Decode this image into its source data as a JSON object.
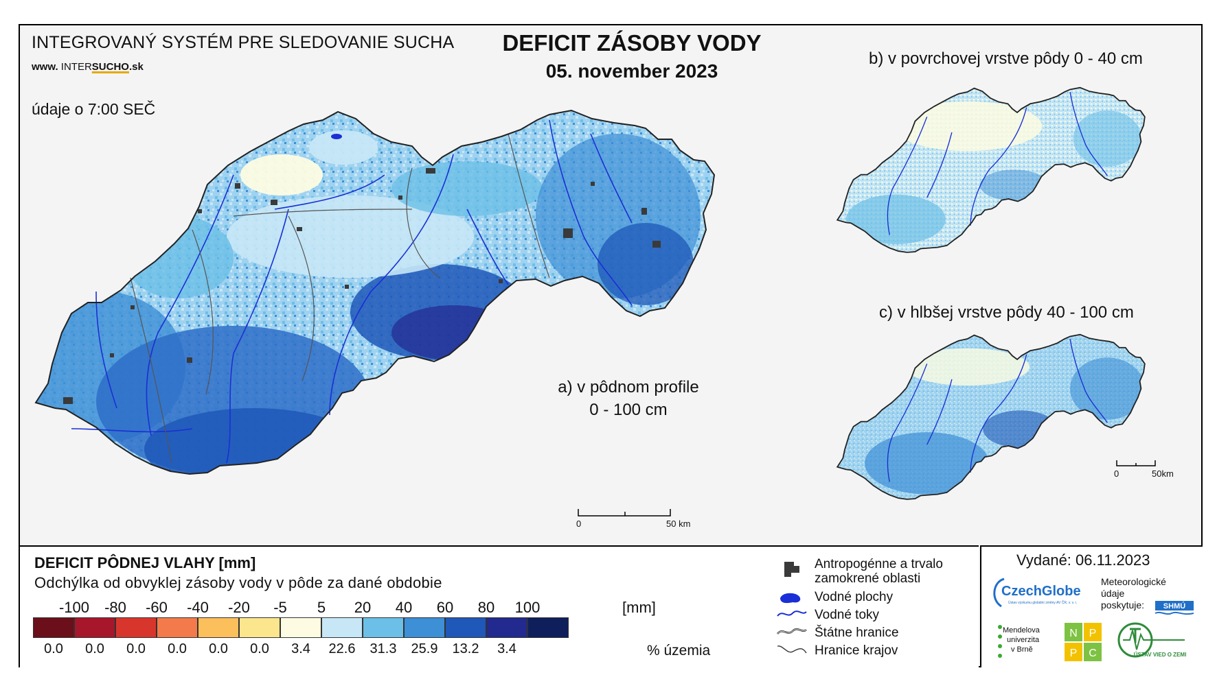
{
  "header": {
    "system_title": "INTEGROVANÝ SYSTÉM PRE SLEDOVANIE SUCHA",
    "url_prefix": "www. ",
    "url_a": "INTER",
    "url_b": "SUCHO",
    "url_c": ".sk",
    "time_note": "údaje o 7:00 SEČ"
  },
  "map_title": "DEFICIT ZÁSOBY VODY",
  "map_date": "05. november 2023",
  "panels": {
    "a_line1": "a) v pôdnom profile",
    "a_line2": "0 - 100 cm",
    "b": "b) v povrchovej vrstve pôdy 0 - 40 cm",
    "c": "c) v hlbšej vrstve pôdy 40 - 100 cm"
  },
  "scalebars": {
    "main_start": "0",
    "main_end": "50 km",
    "small_start": "0",
    "small_end": "50km"
  },
  "legend": {
    "title": "DEFICIT PÔDNEJ VLAHY [mm]",
    "subtitle": "Odchýlka od obvyklej zásoby vody v pôde za dané obdobie",
    "ticks": [
      "-100",
      "-80",
      "-60",
      "-40",
      "-20",
      "-5",
      "5",
      "20",
      "40",
      "60",
      "80",
      "100"
    ],
    "unit": "[mm]",
    "classes": [
      {
        "color": "#6b0f1a",
        "pct": "0.0"
      },
      {
        "color": "#a7172b",
        "pct": "0.0"
      },
      {
        "color": "#d8362d",
        "pct": "0.0"
      },
      {
        "color": "#f37a4a",
        "pct": "0.0"
      },
      {
        "color": "#fbbf5c",
        "pct": "0.0"
      },
      {
        "color": "#fbe68e",
        "pct": "0.0"
      },
      {
        "color": "#fdfce2",
        "pct": "3.4"
      },
      {
        "color": "#c7e7f6",
        "pct": "22.6"
      },
      {
        "color": "#6cbfe7",
        "pct": "31.3"
      },
      {
        "color": "#3d8fd6",
        "pct": "25.9"
      },
      {
        "color": "#1f58b8",
        "pct": "13.2"
      },
      {
        "color": "#222a8f",
        "pct": "3.4"
      },
      {
        "color": "#0f1f5c",
        "pct": ""
      }
    ],
    "pct_label": "% územia"
  },
  "symbols": {
    "anthropogenic_1": "Antropogénne a trvalo",
    "anthropogenic_2": "zamokrené oblasti",
    "water_areas": "Vodné plochy",
    "rivers": "Vodné toky",
    "state_border": "Štátne hranice",
    "region_border": "Hranice krajov"
  },
  "info": {
    "issued": "Vydané: 06.11.2023",
    "czechglobe": "CzechGlobe",
    "czechglobe_sub": "Ústav výzkumu globální změny AV ČR, v. v. i.",
    "meteo_1": "Meteorologické",
    "meteo_2": "údaje",
    "meteo_3": "poskytuje:",
    "shmu": "SHMÚ",
    "mendel_1": "Mendelova",
    "mendel_2": "univerzita",
    "mendel_3": "v Brně",
    "npc": [
      "N",
      "P",
      "P",
      "C"
    ],
    "uvz": "ÚSTAV VIED O ZEMI"
  },
  "colors": {
    "border_state": "#222222",
    "border_region": "#555555",
    "river": "#1a2fd6",
    "anthropogenic": "#3a3a3a"
  }
}
